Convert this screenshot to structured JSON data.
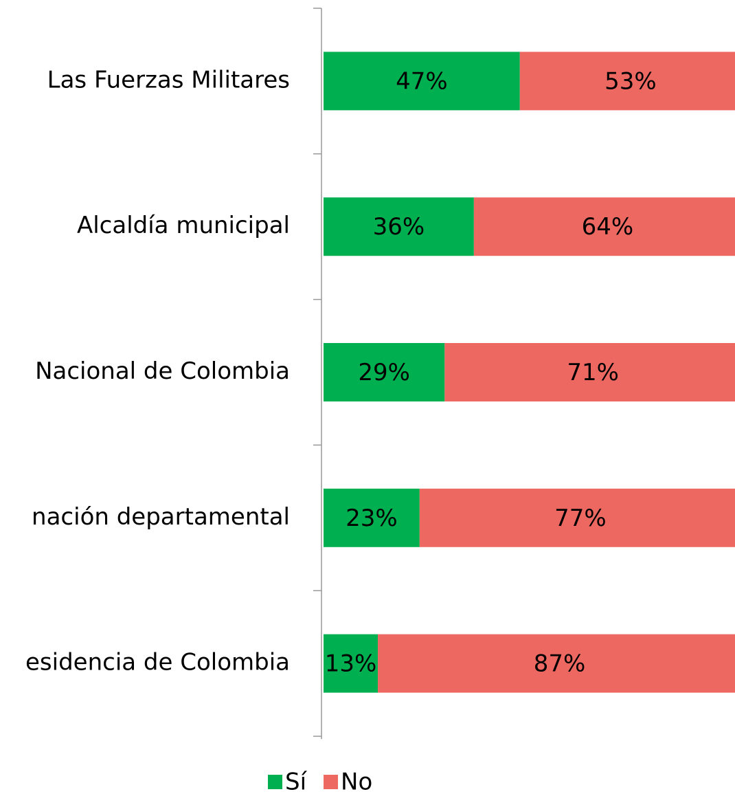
{
  "chart_data": {
    "type": "stacked-bar-horizontal",
    "categories": [
      "Las Fuerzas Militares",
      "Alcaldía municipal",
      "Nacional de Colombia",
      "nación departamental",
      "esidencia de Colombia"
    ],
    "series": [
      {
        "name": "Sí",
        "color": "#00b050",
        "values": [
          47,
          36,
          29,
          23,
          13
        ],
        "value_labels": [
          "47%",
          "36%",
          "29%",
          "23%",
          "13%"
        ]
      },
      {
        "name": "No",
        "color": "#ee6862",
        "values": [
          53,
          64,
          71,
          77,
          87
        ],
        "value_labels": [
          "53%",
          "64%",
          "71%",
          "77%",
          "87%"
        ]
      }
    ],
    "xlim": [
      0,
      100
    ],
    "legend": "bottom"
  }
}
